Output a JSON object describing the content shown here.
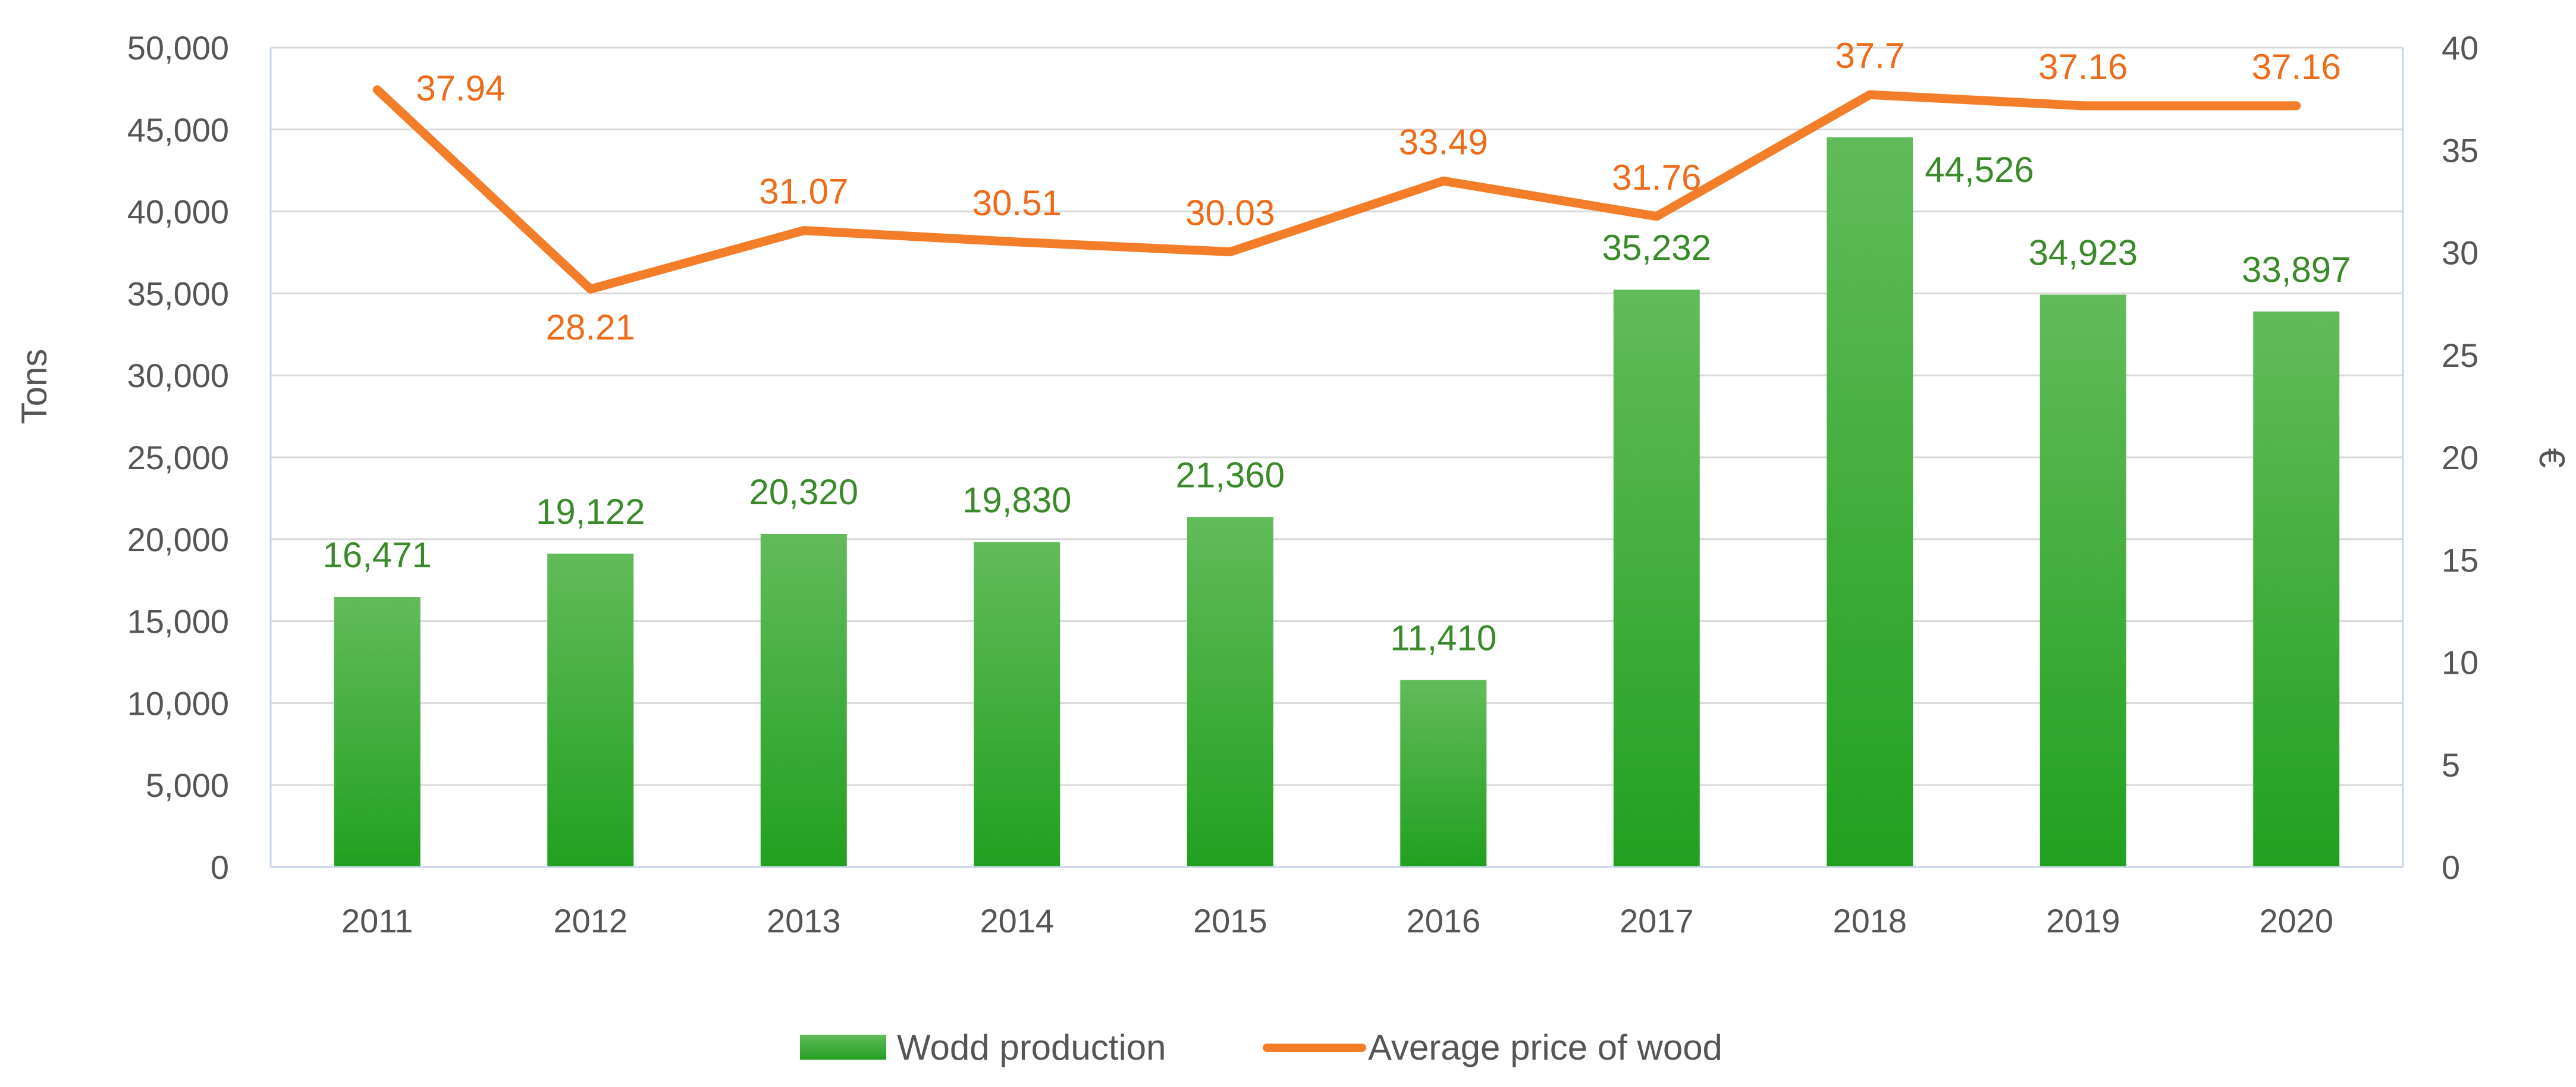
{
  "chart_data": {
    "type": "bar",
    "categories": [
      "2011",
      "2012",
      "2013",
      "2014",
      "2015",
      "2016",
      "2017",
      "2018",
      "2019",
      "2020"
    ],
    "series": [
      {
        "name": "Wodd production",
        "type": "bar",
        "axis": "left",
        "values": [
          16471,
          19122,
          20320,
          19830,
          21360,
          11410,
          35232,
          44526,
          34923,
          33897
        ],
        "labels": [
          "16,471",
          "19,122",
          "20,320",
          "19,830",
          "21,360",
          "11,410",
          "35,232",
          "44,526",
          "34,923",
          "33,897"
        ],
        "color": "#2ea82a"
      },
      {
        "name": "Average price of wood",
        "type": "line",
        "axis": "right",
        "values": [
          37.94,
          28.21,
          31.07,
          30.51,
          30.03,
          33.49,
          31.76,
          37.7,
          37.16,
          37.16
        ],
        "labels": [
          "37.94",
          "28.21",
          "31.07",
          "30.51",
          "30.03",
          "33.49",
          "31.76",
          "37.7",
          "37.16",
          "37.16"
        ],
        "color": "#f47d2a"
      }
    ],
    "ylabel": "Tons",
    "y2label": "€",
    "ylim": [
      0,
      50000
    ],
    "y2lim": [
      0,
      40
    ],
    "yticks": [
      "0",
      "5,000",
      "10,000",
      "15,000",
      "20,000",
      "25,000",
      "30,000",
      "35,000",
      "40,000",
      "45,000",
      "50,000"
    ],
    "y2ticks": [
      "0",
      "5",
      "10",
      "15",
      "20",
      "25",
      "30",
      "35",
      "40"
    ],
    "grid": true,
    "legend": "bottom"
  }
}
